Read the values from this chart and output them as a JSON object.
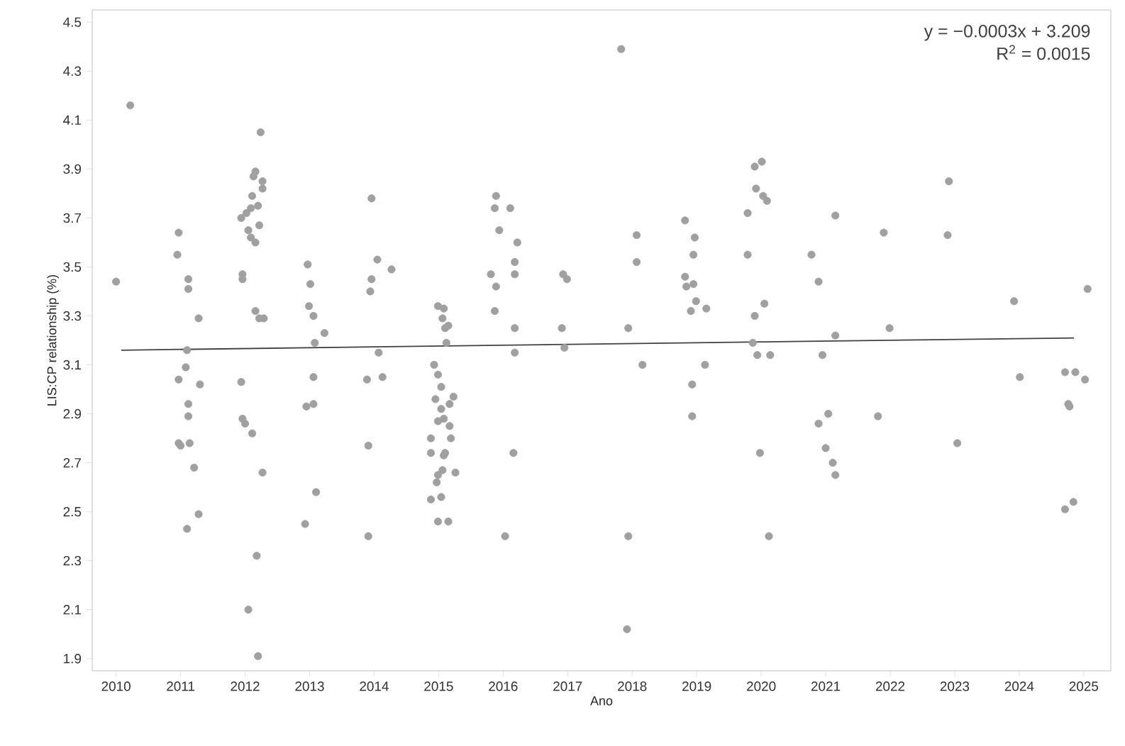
{
  "chart_data": {
    "type": "scatter",
    "xlabel": "Ano",
    "ylabel": "LIS:CP relationship (%)",
    "annotations": [
      "y = −0.0003x + 3.209",
      "R$^{2}$ = 0.0015"
    ],
    "xlim": [
      2009.63,
      2025.42
    ],
    "ylim": [
      1.85,
      4.55
    ],
    "xticks": [
      2010,
      2011,
      2012,
      2013,
      2014,
      2015,
      2016,
      2017,
      2018,
      2019,
      2020,
      2021,
      2022,
      2023,
      2024,
      2025
    ],
    "yticks": [
      1.9,
      2.1,
      2.3,
      2.5,
      2.7,
      2.9,
      3.1,
      3.3,
      3.5,
      3.7,
      3.9,
      4.1,
      4.3,
      4.5
    ],
    "grid": false,
    "series": [
      {
        "color": "#a0a0a0",
        "marker": "circle",
        "x": [
          2010.0,
          2010.22,
          2010.97,
          2010.95,
          2011.12,
          2011.12,
          2011.28,
          2011.1,
          2011.08,
          2010.97,
          2011.3,
          2011.12,
          2011.12,
          2010.97,
          2011.0,
          2011.14,
          2011.21,
          2011.28,
          2011.1,
          2012.24,
          2012.16,
          2012.13,
          2012.27,
          2012.27,
          2012.11,
          2012.09,
          2012.2,
          2011.94,
          2012.02,
          2012.05,
          2012.09,
          2012.22,
          2012.16,
          2011.96,
          2011.96,
          2012.16,
          2012.22,
          2012.29,
          2011.94,
          2011.96,
          2012.0,
          2012.11,
          2012.27,
          2012.18,
          2012.05,
          2012.2,
          2012.97,
          2013.01,
          2012.99,
          2013.06,
          2013.23,
          2013.08,
          2013.06,
          2012.95,
          2013.06,
          2013.1,
          2012.93,
          2013.96,
          2014.05,
          2013.96,
          2014.27,
          2013.94,
          2014.07,
          2013.89,
          2014.13,
          2013.91,
          2013.91,
          2014.99,
          2015.08,
          2015.06,
          2015.15,
          2015.1,
          2015.12,
          2014.93,
          2014.99,
          2015.04,
          2014.95,
          2015.23,
          2015.17,
          2015.04,
          2015.08,
          2014.99,
          2015.17,
          2015.19,
          2014.88,
          2014.88,
          2015.08,
          2015.1,
          2015.26,
          2014.99,
          2014.97,
          2014.88,
          2015.04,
          2014.99,
          2015.15,
          2015.06,
          2015.89,
          2015.87,
          2016.11,
          2015.94,
          2016.22,
          2015.81,
          2016.18,
          2016.18,
          2015.89,
          2015.87,
          2016.18,
          2016.18,
          2016.16,
          2016.03,
          2016.93,
          2016.99,
          2016.91,
          2016.95,
          2017.83,
          2018.07,
          2018.07,
          2017.94,
          2018.16,
          2017.94,
          2017.92,
          2018.82,
          2018.97,
          2018.95,
          2018.82,
          2018.84,
          2018.95,
          2018.91,
          2018.99,
          2019.15,
          2018.93,
          2019.13,
          2018.93,
          2019.79,
          2019.9,
          2020.01,
          2019.92,
          2020.03,
          2020.09,
          2019.79,
          2019.9,
          2020.05,
          2019.87,
          2019.94,
          2020.14,
          2019.98,
          2020.12,
          2020.78,
          2020.89,
          2021.15,
          2020.95,
          2021.15,
          2020.89,
          2021.04,
          2021.0,
          2021.11,
          2021.15,
          2021.9,
          2021.99,
          2021.81,
          2022.91,
          2022.89,
          2023.04,
          2023.92,
          2024.01,
          2024.71,
          2024.87,
          2025.02,
          2024.76,
          2024.78,
          2024.71,
          2024.84,
          2025.06
        ],
        "values": [
          3.44,
          4.16,
          3.64,
          3.55,
          3.45,
          3.41,
          3.29,
          3.16,
          3.09,
          3.04,
          3.02,
          2.94,
          2.89,
          2.78,
          2.77,
          2.78,
          2.68,
          2.49,
          2.43,
          4.05,
          3.89,
          3.87,
          3.85,
          3.82,
          3.79,
          3.74,
          3.75,
          3.7,
          3.72,
          3.65,
          3.62,
          3.67,
          3.6,
          3.47,
          3.45,
          3.32,
          3.29,
          3.29,
          3.03,
          2.88,
          2.86,
          2.82,
          2.66,
          2.32,
          2.1,
          1.91,
          3.51,
          3.43,
          3.34,
          3.3,
          3.23,
          3.19,
          3.05,
          2.93,
          2.94,
          2.58,
          2.45,
          3.78,
          3.53,
          3.45,
          3.49,
          3.4,
          3.15,
          3.04,
          3.05,
          2.77,
          2.4,
          3.34,
          3.33,
          3.29,
          3.26,
          3.25,
          3.19,
          3.1,
          3.06,
          3.01,
          2.96,
          2.97,
          2.94,
          2.92,
          2.88,
          2.87,
          2.85,
          2.8,
          2.8,
          2.74,
          2.73,
          2.74,
          2.66,
          2.65,
          2.62,
          2.55,
          2.56,
          2.46,
          2.46,
          2.67,
          3.79,
          3.74,
          3.74,
          3.65,
          3.6,
          3.47,
          3.52,
          3.47,
          3.42,
          3.32,
          3.25,
          3.15,
          2.74,
          2.4,
          3.47,
          3.45,
          3.25,
          3.17,
          4.39,
          3.63,
          3.52,
          3.25,
          3.1,
          2.4,
          2.02,
          3.69,
          3.62,
          3.55,
          3.46,
          3.42,
          3.43,
          3.32,
          3.36,
          3.33,
          3.02,
          3.1,
          2.89,
          3.72,
          3.91,
          3.93,
          3.82,
          3.79,
          3.77,
          3.55,
          3.3,
          3.35,
          3.19,
          3.14,
          3.14,
          2.74,
          2.4,
          3.55,
          3.44,
          3.71,
          3.14,
          3.22,
          2.86,
          2.9,
          2.76,
          2.7,
          2.65,
          3.64,
          3.25,
          2.89,
          3.85,
          3.63,
          2.78,
          3.36,
          3.05,
          3.07,
          3.07,
          3.04,
          2.94,
          2.93,
          2.51,
          2.54,
          3.41
        ]
      },
      {
        "type": "line",
        "color": "#404040",
        "marker": "none",
        "line_style": "solid",
        "x": [
          2010.08,
          2024.85
        ],
        "values": [
          3.16,
          3.21
        ]
      }
    ]
  }
}
